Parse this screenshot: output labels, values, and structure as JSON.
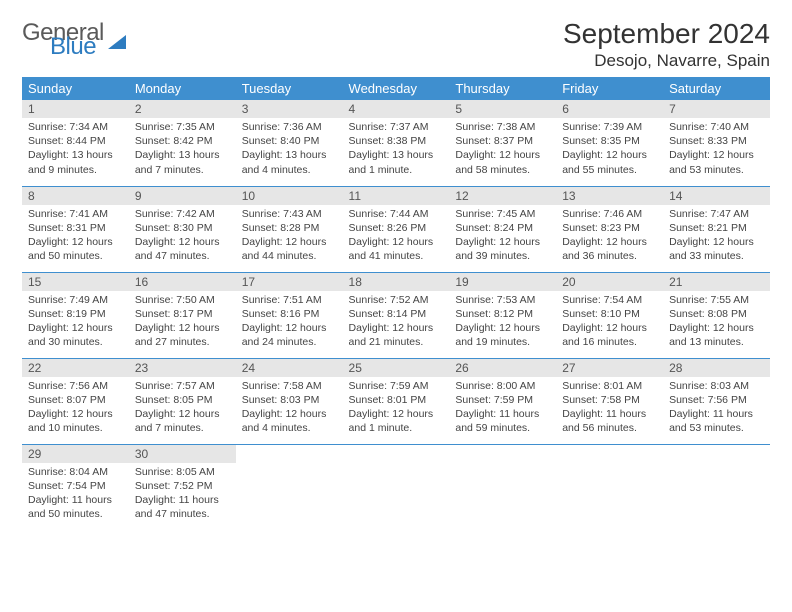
{
  "logo": {
    "word1": "General",
    "word2": "Blue"
  },
  "title": "September 2024",
  "location": "Desojo, Navarre, Spain",
  "colors": {
    "header_bg": "#3f8fcf",
    "header_text": "#ffffff",
    "daynum_bg": "#e6e6e6",
    "row_divider": "#3f8fcf",
    "logo_blue": "#2d7cc0",
    "body_text": "#444444"
  },
  "typography": {
    "title_fontsize": 28,
    "location_fontsize": 17,
    "weekday_fontsize": 13,
    "daynum_fontsize": 12,
    "cell_fontsize": 10.5
  },
  "weekdays": [
    "Sunday",
    "Monday",
    "Tuesday",
    "Wednesday",
    "Thursday",
    "Friday",
    "Saturday"
  ],
  "days": [
    {
      "n": 1,
      "sunrise": "7:34 AM",
      "sunset": "8:44 PM",
      "daylight": "13 hours and 9 minutes."
    },
    {
      "n": 2,
      "sunrise": "7:35 AM",
      "sunset": "8:42 PM",
      "daylight": "13 hours and 7 minutes."
    },
    {
      "n": 3,
      "sunrise": "7:36 AM",
      "sunset": "8:40 PM",
      "daylight": "13 hours and 4 minutes."
    },
    {
      "n": 4,
      "sunrise": "7:37 AM",
      "sunset": "8:38 PM",
      "daylight": "13 hours and 1 minute."
    },
    {
      "n": 5,
      "sunrise": "7:38 AM",
      "sunset": "8:37 PM",
      "daylight": "12 hours and 58 minutes."
    },
    {
      "n": 6,
      "sunrise": "7:39 AM",
      "sunset": "8:35 PM",
      "daylight": "12 hours and 55 minutes."
    },
    {
      "n": 7,
      "sunrise": "7:40 AM",
      "sunset": "8:33 PM",
      "daylight": "12 hours and 53 minutes."
    },
    {
      "n": 8,
      "sunrise": "7:41 AM",
      "sunset": "8:31 PM",
      "daylight": "12 hours and 50 minutes."
    },
    {
      "n": 9,
      "sunrise": "7:42 AM",
      "sunset": "8:30 PM",
      "daylight": "12 hours and 47 minutes."
    },
    {
      "n": 10,
      "sunrise": "7:43 AM",
      "sunset": "8:28 PM",
      "daylight": "12 hours and 44 minutes."
    },
    {
      "n": 11,
      "sunrise": "7:44 AM",
      "sunset": "8:26 PM",
      "daylight": "12 hours and 41 minutes."
    },
    {
      "n": 12,
      "sunrise": "7:45 AM",
      "sunset": "8:24 PM",
      "daylight": "12 hours and 39 minutes."
    },
    {
      "n": 13,
      "sunrise": "7:46 AM",
      "sunset": "8:23 PM",
      "daylight": "12 hours and 36 minutes."
    },
    {
      "n": 14,
      "sunrise": "7:47 AM",
      "sunset": "8:21 PM",
      "daylight": "12 hours and 33 minutes."
    },
    {
      "n": 15,
      "sunrise": "7:49 AM",
      "sunset": "8:19 PM",
      "daylight": "12 hours and 30 minutes."
    },
    {
      "n": 16,
      "sunrise": "7:50 AM",
      "sunset": "8:17 PM",
      "daylight": "12 hours and 27 minutes."
    },
    {
      "n": 17,
      "sunrise": "7:51 AM",
      "sunset": "8:16 PM",
      "daylight": "12 hours and 24 minutes."
    },
    {
      "n": 18,
      "sunrise": "7:52 AM",
      "sunset": "8:14 PM",
      "daylight": "12 hours and 21 minutes."
    },
    {
      "n": 19,
      "sunrise": "7:53 AM",
      "sunset": "8:12 PM",
      "daylight": "12 hours and 19 minutes."
    },
    {
      "n": 20,
      "sunrise": "7:54 AM",
      "sunset": "8:10 PM",
      "daylight": "12 hours and 16 minutes."
    },
    {
      "n": 21,
      "sunrise": "7:55 AM",
      "sunset": "8:08 PM",
      "daylight": "12 hours and 13 minutes."
    },
    {
      "n": 22,
      "sunrise": "7:56 AM",
      "sunset": "8:07 PM",
      "daylight": "12 hours and 10 minutes."
    },
    {
      "n": 23,
      "sunrise": "7:57 AM",
      "sunset": "8:05 PM",
      "daylight": "12 hours and 7 minutes."
    },
    {
      "n": 24,
      "sunrise": "7:58 AM",
      "sunset": "8:03 PM",
      "daylight": "12 hours and 4 minutes."
    },
    {
      "n": 25,
      "sunrise": "7:59 AM",
      "sunset": "8:01 PM",
      "daylight": "12 hours and 1 minute."
    },
    {
      "n": 26,
      "sunrise": "8:00 AM",
      "sunset": "7:59 PM",
      "daylight": "11 hours and 59 minutes."
    },
    {
      "n": 27,
      "sunrise": "8:01 AM",
      "sunset": "7:58 PM",
      "daylight": "11 hours and 56 minutes."
    },
    {
      "n": 28,
      "sunrise": "8:03 AM",
      "sunset": "7:56 PM",
      "daylight": "11 hours and 53 minutes."
    },
    {
      "n": 29,
      "sunrise": "8:04 AM",
      "sunset": "7:54 PM",
      "daylight": "11 hours and 50 minutes."
    },
    {
      "n": 30,
      "sunrise": "8:05 AM",
      "sunset": "7:52 PM",
      "daylight": "11 hours and 47 minutes."
    }
  ],
  "labels": {
    "sunrise": "Sunrise:",
    "sunset": "Sunset:",
    "daylight": "Daylight:"
  },
  "layout": {
    "columns": 7,
    "rows": 5,
    "first_weekday_index": 0,
    "trailing_empty_cells": 5
  }
}
